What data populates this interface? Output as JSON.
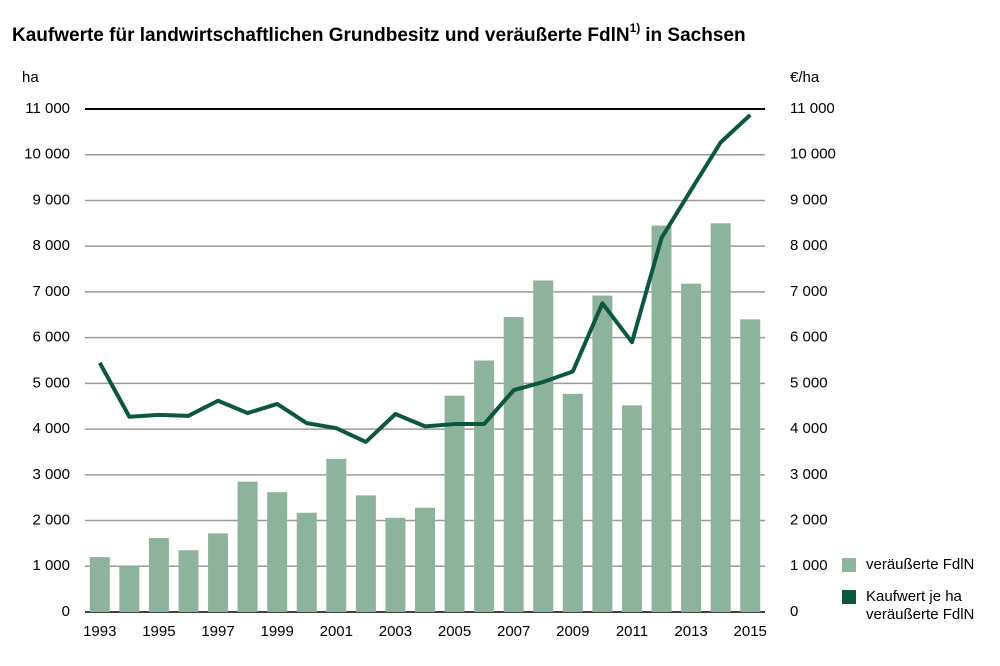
{
  "chart_data": {
    "type": "bar-line",
    "title": "Kaufwerte für landwirtschaftlichen Grundbesitz und veräußerte FdlN",
    "title_note": "1)",
    "title_end": "in Sachsen",
    "y_label": "ha",
    "y2_label": "€/ha",
    "categories": [
      "1993",
      null,
      "1995",
      null,
      "1997",
      null,
      "1999",
      null,
      "2001",
      null,
      "2003",
      null,
      "2005",
      null,
      "2007",
      null,
      "2009",
      null,
      "2011",
      null,
      "2013",
      null,
      "2015"
    ],
    "series": [
      {
        "name": "veräußerte FdlN",
        "type": "bar",
        "color": "#8db39c",
        "values": [
          1200,
          1000,
          1620,
          1350,
          1720,
          2850,
          2620,
          2170,
          3350,
          2550,
          2060,
          2280,
          4730,
          5500,
          6450,
          7250,
          4770,
          6920,
          4520,
          8450,
          7180,
          8500,
          6400
        ]
      },
      {
        "name": "Kaufwert je ha veräußerte FdlN",
        "type": "line",
        "axis": "y2",
        "color": "#0d5640",
        "values": [
          5450,
          4270,
          4310,
          4290,
          4620,
          4350,
          4550,
          4130,
          4020,
          3720,
          4330,
          4060,
          4110,
          4110,
          4850,
          5030,
          5260,
          6750,
          5900,
          8180,
          9230,
          10270,
          10870
        ]
      }
    ],
    "ylim": [
      0,
      11000
    ],
    "yticks": [
      0,
      {
        "value": 1000,
        "label": "1 000"
      },
      {
        "value": 2000,
        "label": "2 000"
      },
      {
        "value": 3000,
        "label": "3 000"
      },
      {
        "value": 4000,
        "label": "4 000"
      },
      {
        "value": 5000,
        "label": "5 000"
      },
      {
        "value": 6000,
        "label": "6 000"
      },
      {
        "value": 7000,
        "label": "7 000"
      },
      {
        "value": 8000,
        "label": "8 000"
      },
      {
        "value": 9000,
        "label": "9 000"
      },
      {
        "value": 10000,
        "label": "10 000"
      },
      {
        "value": 11000,
        "label": "11 000"
      }
    ],
    "y2lim": [
      0,
      11000
    ],
    "y2ticks": [
      0,
      {
        "value": 1000,
        "label": "1 000"
      },
      {
        "value": 2000,
        "label": "2 000"
      },
      {
        "value": 3000,
        "label": "3 000"
      },
      {
        "value": 4000,
        "label": "4 000"
      },
      {
        "value": 5000,
        "label": "5 000"
      },
      {
        "value": 6000,
        "label": "6 000"
      },
      {
        "value": 7000,
        "label": "7 000"
      },
      {
        "value": 8000,
        "label": "8 000"
      },
      {
        "value": 9000,
        "label": "9 000"
      },
      {
        "value": 10000,
        "label": "10 000"
      },
      {
        "value": 11000,
        "label": "11 000"
      }
    ],
    "grid": true
  }
}
